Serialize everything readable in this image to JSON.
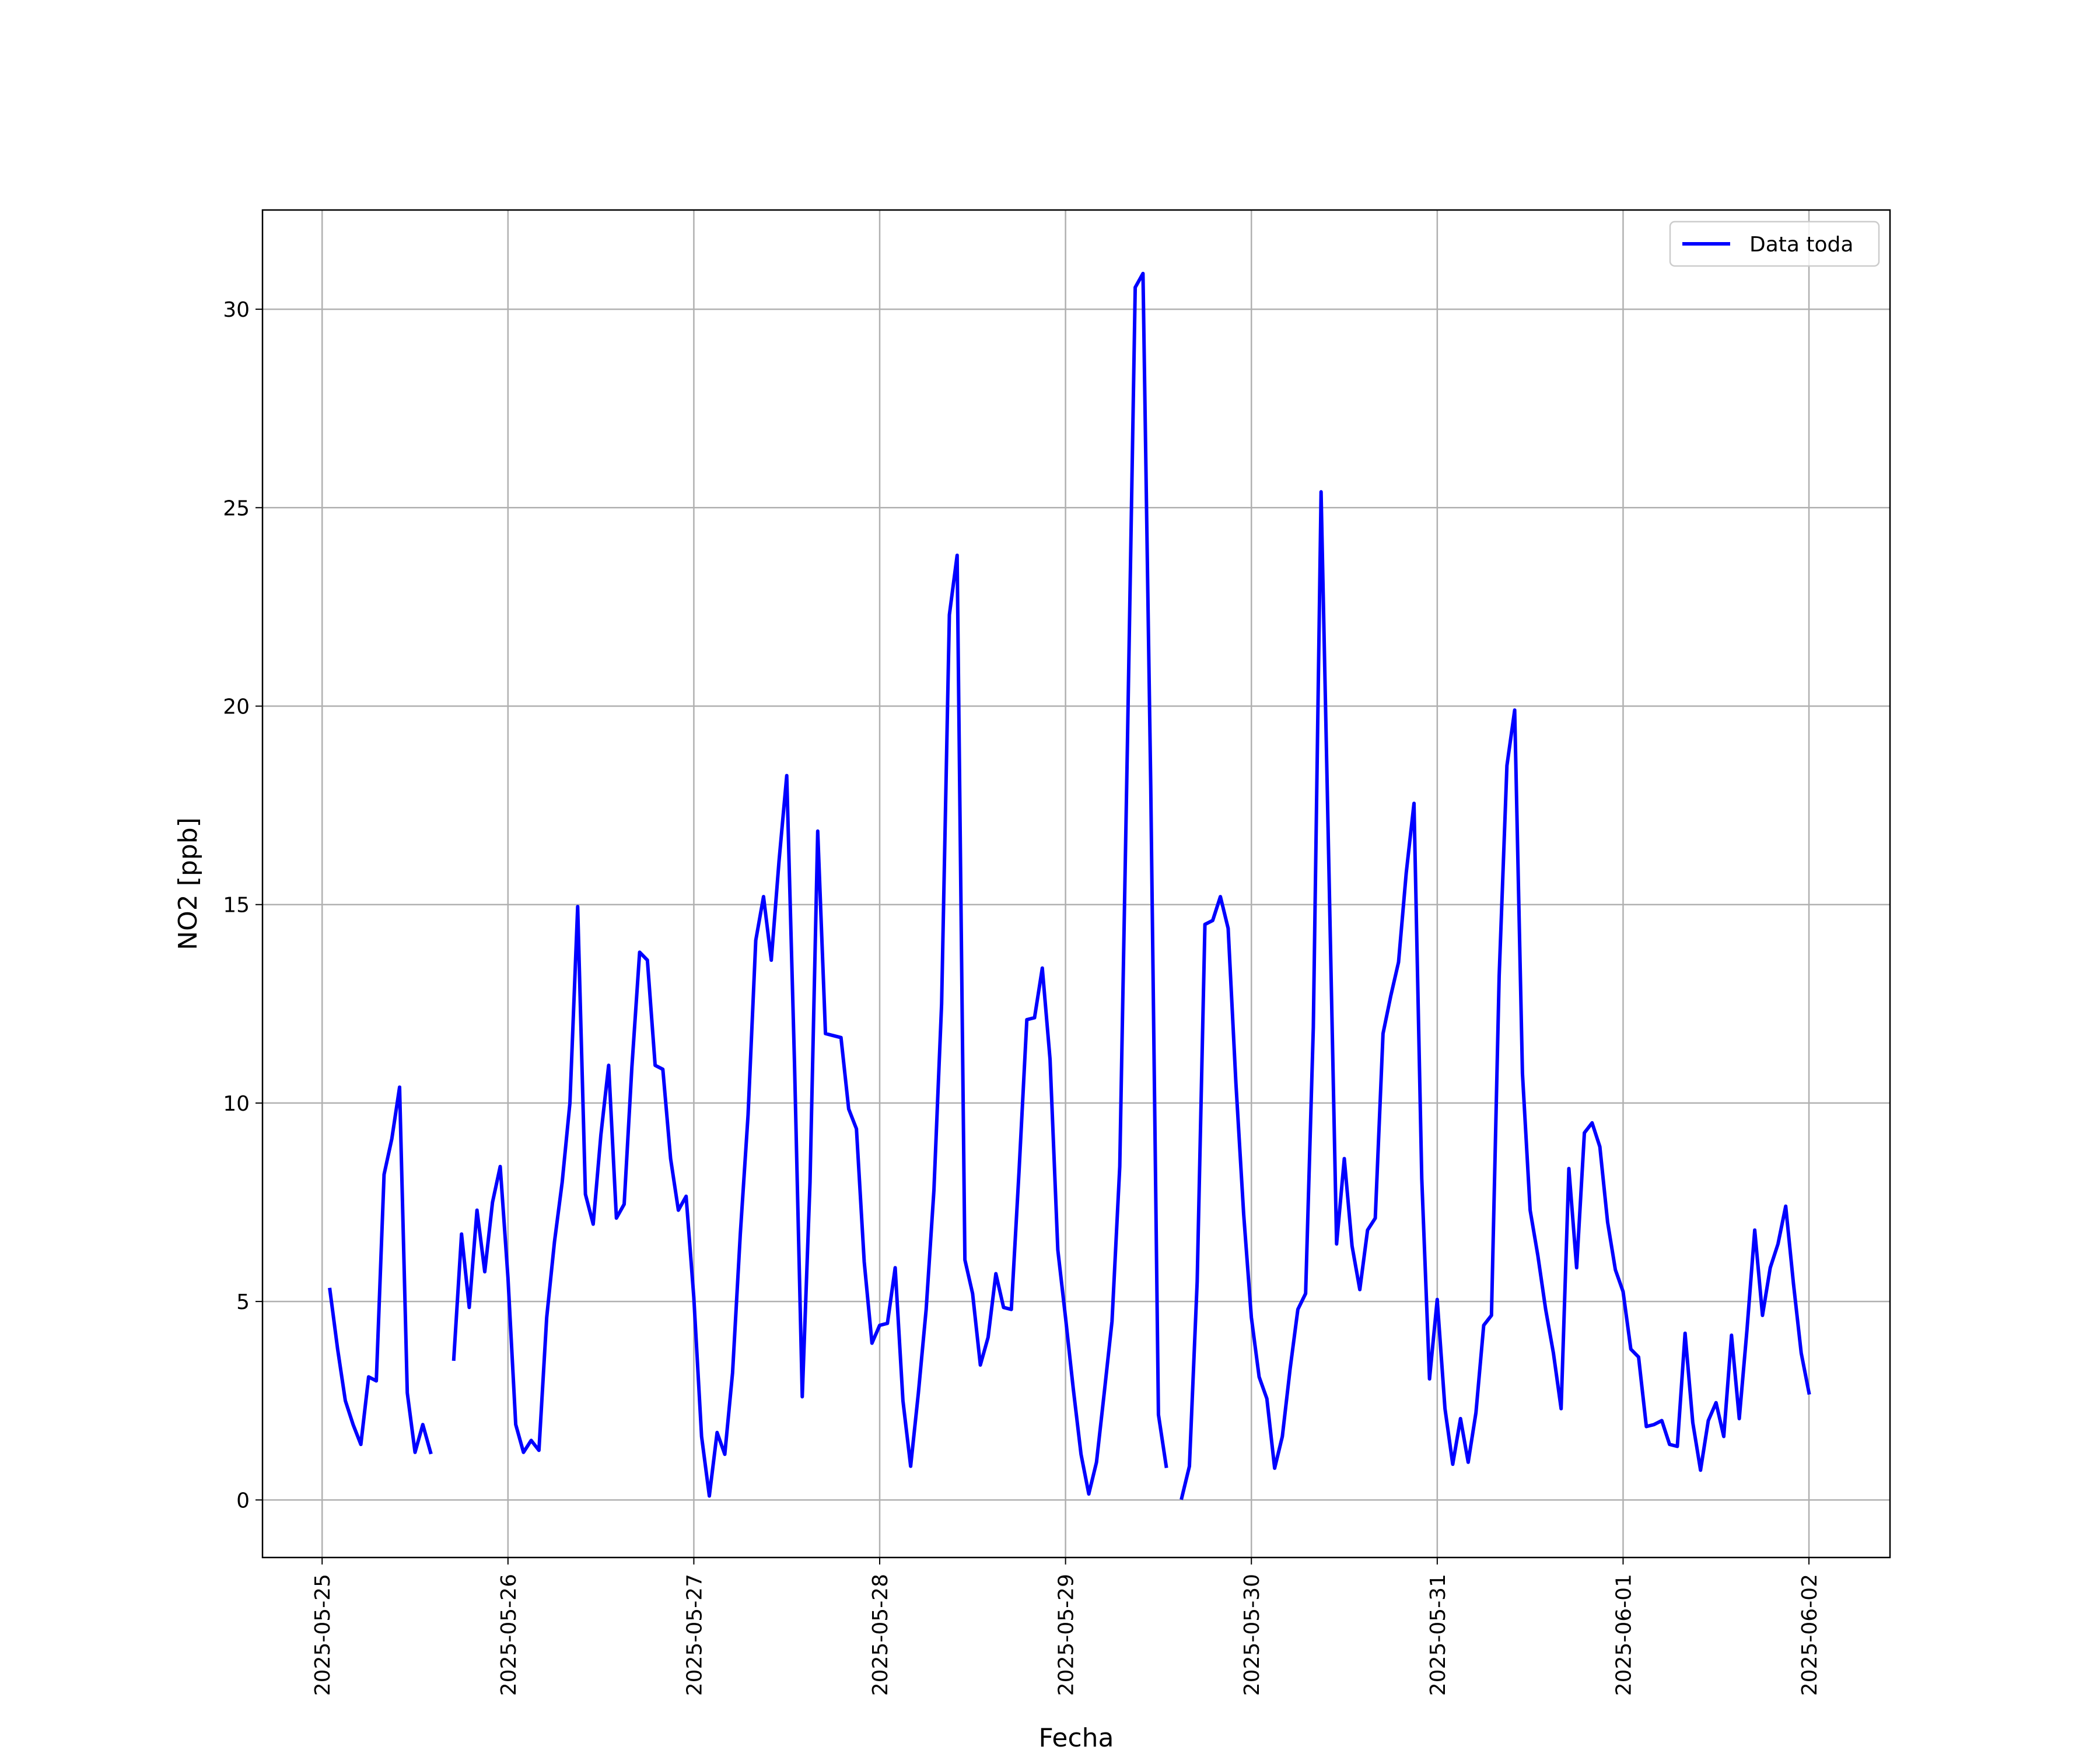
{
  "chart_data": {
    "type": "line",
    "title": "",
    "xlabel": "Fecha",
    "ylabel_main": "NO2 ",
    "ylabel_unit": "[ppb]",
    "x_tick_labels": [
      "2025-05-25",
      "2025-05-26",
      "2025-05-27",
      "2025-05-28",
      "2025-05-29",
      "2025-05-30",
      "2025-05-31",
      "2025-06-01",
      "2025-06-02"
    ],
    "y_ticks": [
      0,
      5,
      10,
      15,
      20,
      25,
      30
    ],
    "y_tick_labels": [
      "0",
      "5",
      "10",
      "15",
      "20",
      "25",
      "30"
    ],
    "xlim": [
      "2025-05-24T16:18",
      "2025-06-02T10:28"
    ],
    "ylim": [
      -1.45,
      32.5
    ],
    "grid": true,
    "legend_position": "top-right",
    "colors": {
      "line": "#0000ff",
      "grid": "#b0b0b0",
      "axes": "#000000"
    },
    "series": [
      {
        "name": "Data toda",
        "points": [
          [
            "2025-05-25T01:00",
            5.3
          ],
          [
            "2025-05-25T02:00",
            3.8
          ],
          [
            "2025-05-25T03:00",
            2.5
          ],
          [
            "2025-05-25T04:00",
            1.9
          ],
          [
            "2025-05-25T05:00",
            1.4
          ],
          [
            "2025-05-25T06:00",
            3.1
          ],
          [
            "2025-05-25T07:00",
            3.0
          ],
          [
            "2025-05-25T08:00",
            8.2
          ],
          [
            "2025-05-25T09:00",
            9.1
          ],
          [
            "2025-05-25T10:00",
            10.4
          ],
          [
            "2025-05-25T11:00",
            2.7
          ],
          [
            "2025-05-25T12:00",
            1.2
          ],
          [
            "2025-05-25T13:00",
            1.9
          ],
          [
            "2025-05-25T14:00",
            1.2
          ],
          null,
          [
            "2025-05-25T17:00",
            3.55
          ],
          [
            "2025-05-25T18:00",
            6.7
          ],
          [
            "2025-05-25T19:00",
            4.85
          ],
          [
            "2025-05-25T20:00",
            7.3
          ],
          [
            "2025-05-25T21:00",
            5.75
          ],
          [
            "2025-05-25T22:00",
            7.5
          ],
          [
            "2025-05-25T23:00",
            8.4
          ],
          [
            "2025-05-26T00:00",
            5.6
          ],
          [
            "2025-05-26T01:00",
            1.9
          ],
          [
            "2025-05-26T02:00",
            1.2
          ],
          [
            "2025-05-26T03:00",
            1.5
          ],
          [
            "2025-05-26T04:00",
            1.25
          ],
          [
            "2025-05-26T05:00",
            4.6
          ],
          [
            "2025-05-26T06:00",
            6.5
          ],
          [
            "2025-05-26T07:00",
            8.0
          ],
          [
            "2025-05-26T08:00",
            10.0
          ],
          [
            "2025-05-26T09:00",
            14.95
          ],
          [
            "2025-05-26T10:00",
            7.7
          ],
          [
            "2025-05-26T11:00",
            6.95
          ],
          [
            "2025-05-26T12:00",
            9.2
          ],
          [
            "2025-05-26T13:00",
            10.95
          ],
          [
            "2025-05-26T14:00",
            7.1
          ],
          [
            "2025-05-26T15:00",
            7.45
          ],
          [
            "2025-05-26T16:00",
            10.9
          ],
          [
            "2025-05-26T17:00",
            13.8
          ],
          [
            "2025-05-26T18:00",
            13.6
          ],
          [
            "2025-05-26T19:00",
            10.95
          ],
          [
            "2025-05-26T20:00",
            10.85
          ],
          [
            "2025-05-26T21:00",
            8.6
          ],
          [
            "2025-05-26T22:00",
            7.3
          ],
          [
            "2025-05-26T23:00",
            7.65
          ],
          [
            "2025-05-27T00:00",
            5.1
          ],
          [
            "2025-05-27T01:00",
            1.6
          ],
          [
            "2025-05-27T02:00",
            0.1
          ],
          [
            "2025-05-27T03:00",
            1.7
          ],
          [
            "2025-05-27T04:00",
            1.15
          ],
          [
            "2025-05-27T05:00",
            3.2
          ],
          [
            "2025-05-27T06:00",
            6.7
          ],
          [
            "2025-05-27T07:00",
            9.7
          ],
          [
            "2025-05-27T08:00",
            14.1
          ],
          [
            "2025-05-27T09:00",
            15.2
          ],
          [
            "2025-05-27T10:00",
            13.6
          ],
          [
            "2025-05-27T11:00",
            16.1
          ],
          [
            "2025-05-27T12:00",
            18.25
          ],
          [
            "2025-05-27T13:00",
            11.0
          ],
          [
            "2025-05-27T14:00",
            2.6
          ],
          [
            "2025-05-27T15:00",
            8.0
          ],
          [
            "2025-05-27T16:00",
            16.85
          ],
          [
            "2025-05-27T17:00",
            11.75
          ],
          [
            "2025-05-27T18:00",
            11.7
          ],
          [
            "2025-05-27T19:00",
            11.65
          ],
          [
            "2025-05-27T20:00",
            9.85
          ],
          [
            "2025-05-27T21:00",
            9.35
          ],
          [
            "2025-05-27T22:00",
            6.0
          ],
          [
            "2025-05-27T23:00",
            3.95
          ],
          [
            "2025-05-28T00:00",
            4.4
          ],
          [
            "2025-05-28T01:00",
            4.45
          ],
          [
            "2025-05-28T02:00",
            5.85
          ],
          [
            "2025-05-28T03:00",
            2.5
          ],
          [
            "2025-05-28T04:00",
            0.85
          ],
          [
            "2025-05-28T05:00",
            2.7
          ],
          [
            "2025-05-28T06:00",
            4.8
          ],
          [
            "2025-05-28T07:00",
            7.8
          ],
          [
            "2025-05-28T08:00",
            12.5
          ],
          [
            "2025-05-28T09:00",
            22.3
          ],
          [
            "2025-05-28T10:00",
            23.8
          ],
          [
            "2025-05-28T11:00",
            6.05
          ],
          [
            "2025-05-28T12:00",
            5.2
          ],
          [
            "2025-05-28T13:00",
            3.4
          ],
          [
            "2025-05-28T14:00",
            4.1
          ],
          [
            "2025-05-28T15:00",
            5.7
          ],
          [
            "2025-05-28T16:00",
            4.85
          ],
          [
            "2025-05-28T17:00",
            4.8
          ],
          [
            "2025-05-28T18:00",
            8.3
          ],
          [
            "2025-05-28T19:00",
            12.1
          ],
          [
            "2025-05-28T20:00",
            12.15
          ],
          [
            "2025-05-28T21:00",
            13.4
          ],
          [
            "2025-05-28T22:00",
            11.1
          ],
          [
            "2025-05-28T23:00",
            6.3
          ],
          [
            "2025-05-29T00:00",
            4.6
          ],
          [
            "2025-05-29T01:00",
            2.8
          ],
          [
            "2025-05-29T02:00",
            1.15
          ],
          [
            "2025-05-29T03:00",
            0.15
          ],
          [
            "2025-05-29T04:00",
            0.95
          ],
          [
            "2025-05-29T05:00",
            2.7
          ],
          [
            "2025-05-29T06:00",
            4.5
          ],
          [
            "2025-05-29T07:00",
            8.4
          ],
          [
            "2025-05-29T08:00",
            19.1
          ],
          [
            "2025-05-29T09:00",
            30.55
          ],
          [
            "2025-05-29T10:00",
            30.9
          ],
          [
            "2025-05-29T11:00",
            18.0
          ],
          [
            "2025-05-29T12:00",
            2.15
          ],
          [
            "2025-05-29T13:00",
            0.85
          ],
          null,
          [
            "2025-05-29T15:00",
            0.05
          ],
          [
            "2025-05-29T16:00",
            0.85
          ],
          [
            "2025-05-29T17:00",
            5.5
          ],
          [
            "2025-05-29T18:00",
            14.5
          ],
          [
            "2025-05-29T19:00",
            14.6
          ],
          [
            "2025-05-29T20:00",
            15.2
          ],
          [
            "2025-05-29T21:00",
            14.4
          ],
          [
            "2025-05-29T22:00",
            10.5
          ],
          [
            "2025-05-29T23:00",
            7.2
          ],
          [
            "2025-05-30T00:00",
            4.6
          ],
          [
            "2025-05-30T01:00",
            3.1
          ],
          [
            "2025-05-30T02:00",
            2.55
          ],
          [
            "2025-05-30T03:00",
            0.8
          ],
          [
            "2025-05-30T04:00",
            1.6
          ],
          [
            "2025-05-30T05:00",
            3.3
          ],
          [
            "2025-05-30T06:00",
            4.8
          ],
          [
            "2025-05-30T07:00",
            5.2
          ],
          [
            "2025-05-30T08:00",
            11.9
          ],
          [
            "2025-05-30T09:00",
            25.4
          ],
          [
            "2025-05-30T10:00",
            16.0
          ],
          [
            "2025-05-30T11:00",
            6.45
          ],
          [
            "2025-05-30T12:00",
            8.6
          ],
          [
            "2025-05-30T13:00",
            6.4
          ],
          [
            "2025-05-30T14:00",
            5.3
          ],
          [
            "2025-05-30T15:00",
            6.8
          ],
          [
            "2025-05-30T16:00",
            7.1
          ],
          [
            "2025-05-30T17:00",
            11.75
          ],
          [
            "2025-05-30T18:00",
            12.7
          ],
          [
            "2025-05-30T19:00",
            13.55
          ],
          [
            "2025-05-30T20:00",
            15.8
          ],
          [
            "2025-05-30T21:00",
            17.55
          ],
          [
            "2025-05-30T22:00",
            8.1
          ],
          [
            "2025-05-30T23:00",
            3.05
          ],
          [
            "2025-05-31T00:00",
            5.05
          ],
          [
            "2025-05-31T01:00",
            2.3
          ],
          [
            "2025-05-31T02:00",
            0.9
          ],
          [
            "2025-05-31T03:00",
            2.05
          ],
          [
            "2025-05-31T04:00",
            0.95
          ],
          [
            "2025-05-31T05:00",
            2.2
          ],
          [
            "2025-05-31T06:00",
            4.4
          ],
          [
            "2025-05-31T07:00",
            4.65
          ],
          [
            "2025-05-31T08:00",
            13.2
          ],
          [
            "2025-05-31T09:00",
            18.5
          ],
          [
            "2025-05-31T10:00",
            19.9
          ],
          [
            "2025-05-31T11:00",
            10.75
          ],
          [
            "2025-05-31T12:00",
            7.3
          ],
          [
            "2025-05-31T13:00",
            6.15
          ],
          [
            "2025-05-31T14:00",
            4.8
          ],
          [
            "2025-05-31T15:00",
            3.7
          ],
          [
            "2025-05-31T16:00",
            2.3
          ],
          [
            "2025-05-31T17:00",
            8.35
          ],
          [
            "2025-05-31T18:00",
            5.85
          ],
          [
            "2025-05-31T19:00",
            9.25
          ],
          [
            "2025-05-31T20:00",
            9.5
          ],
          [
            "2025-05-31T21:00",
            8.9
          ],
          [
            "2025-05-31T22:00",
            7.0
          ],
          [
            "2025-05-31T23:00",
            5.8
          ],
          [
            "2025-06-01T00:00",
            5.25
          ],
          [
            "2025-06-01T01:00",
            3.8
          ],
          [
            "2025-06-01T02:00",
            3.6
          ],
          [
            "2025-06-01T03:00",
            1.85
          ],
          [
            "2025-06-01T04:00",
            1.9
          ],
          [
            "2025-06-01T05:00",
            2.0
          ],
          [
            "2025-06-01T06:00",
            1.4
          ],
          [
            "2025-06-01T07:00",
            1.35
          ],
          [
            "2025-06-01T08:00",
            4.2
          ],
          [
            "2025-06-01T09:00",
            1.95
          ],
          [
            "2025-06-01T10:00",
            0.75
          ],
          [
            "2025-06-01T11:00",
            2.0
          ],
          [
            "2025-06-01T12:00",
            2.45
          ],
          [
            "2025-06-01T13:00",
            1.6
          ],
          [
            "2025-06-01T14:00",
            4.15
          ],
          [
            "2025-06-01T15:00",
            2.05
          ],
          [
            "2025-06-01T16:00",
            4.3
          ],
          [
            "2025-06-01T17:00",
            6.8
          ],
          [
            "2025-06-01T18:00",
            4.65
          ],
          [
            "2025-06-01T19:00",
            5.85
          ],
          [
            "2025-06-01T20:00",
            6.45
          ],
          [
            "2025-06-01T21:00",
            7.4
          ],
          [
            "2025-06-01T22:00",
            5.45
          ],
          [
            "2025-06-01T23:00",
            3.7
          ],
          [
            "2025-06-02T00:00",
            2.7
          ]
        ]
      }
    ]
  }
}
